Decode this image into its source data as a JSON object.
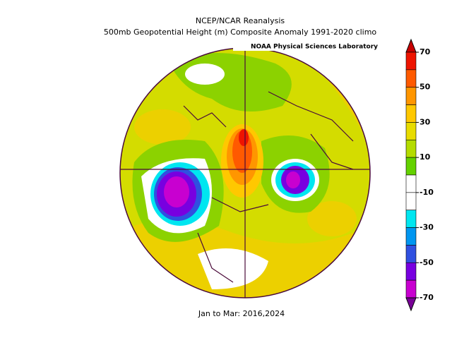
{
  "header": {
    "title": "NCEP/NCAR Reanalysis",
    "subtitle": "500mb Geopotential Height (m) Composite Anomaly 1991-2020 climo",
    "credit": "NOAA Physical Sciences Laboratory"
  },
  "footer": {
    "period": "Jan to Mar: 2016,2024"
  },
  "colorbar": {
    "ticks": [
      70,
      50,
      30,
      10,
      -10,
      -30,
      -50,
      -70
    ],
    "colors": [
      "#c80000",
      "#ee1400",
      "#ff5a00",
      "#ff9600",
      "#ffc800",
      "#e8dc00",
      "#b4dc00",
      "#64d200",
      "#ffffff",
      "#ffffff",
      "#00e6f0",
      "#0096f0",
      "#3050e0",
      "#7800e0",
      "#c800d0",
      "#780096"
    ]
  }
}
